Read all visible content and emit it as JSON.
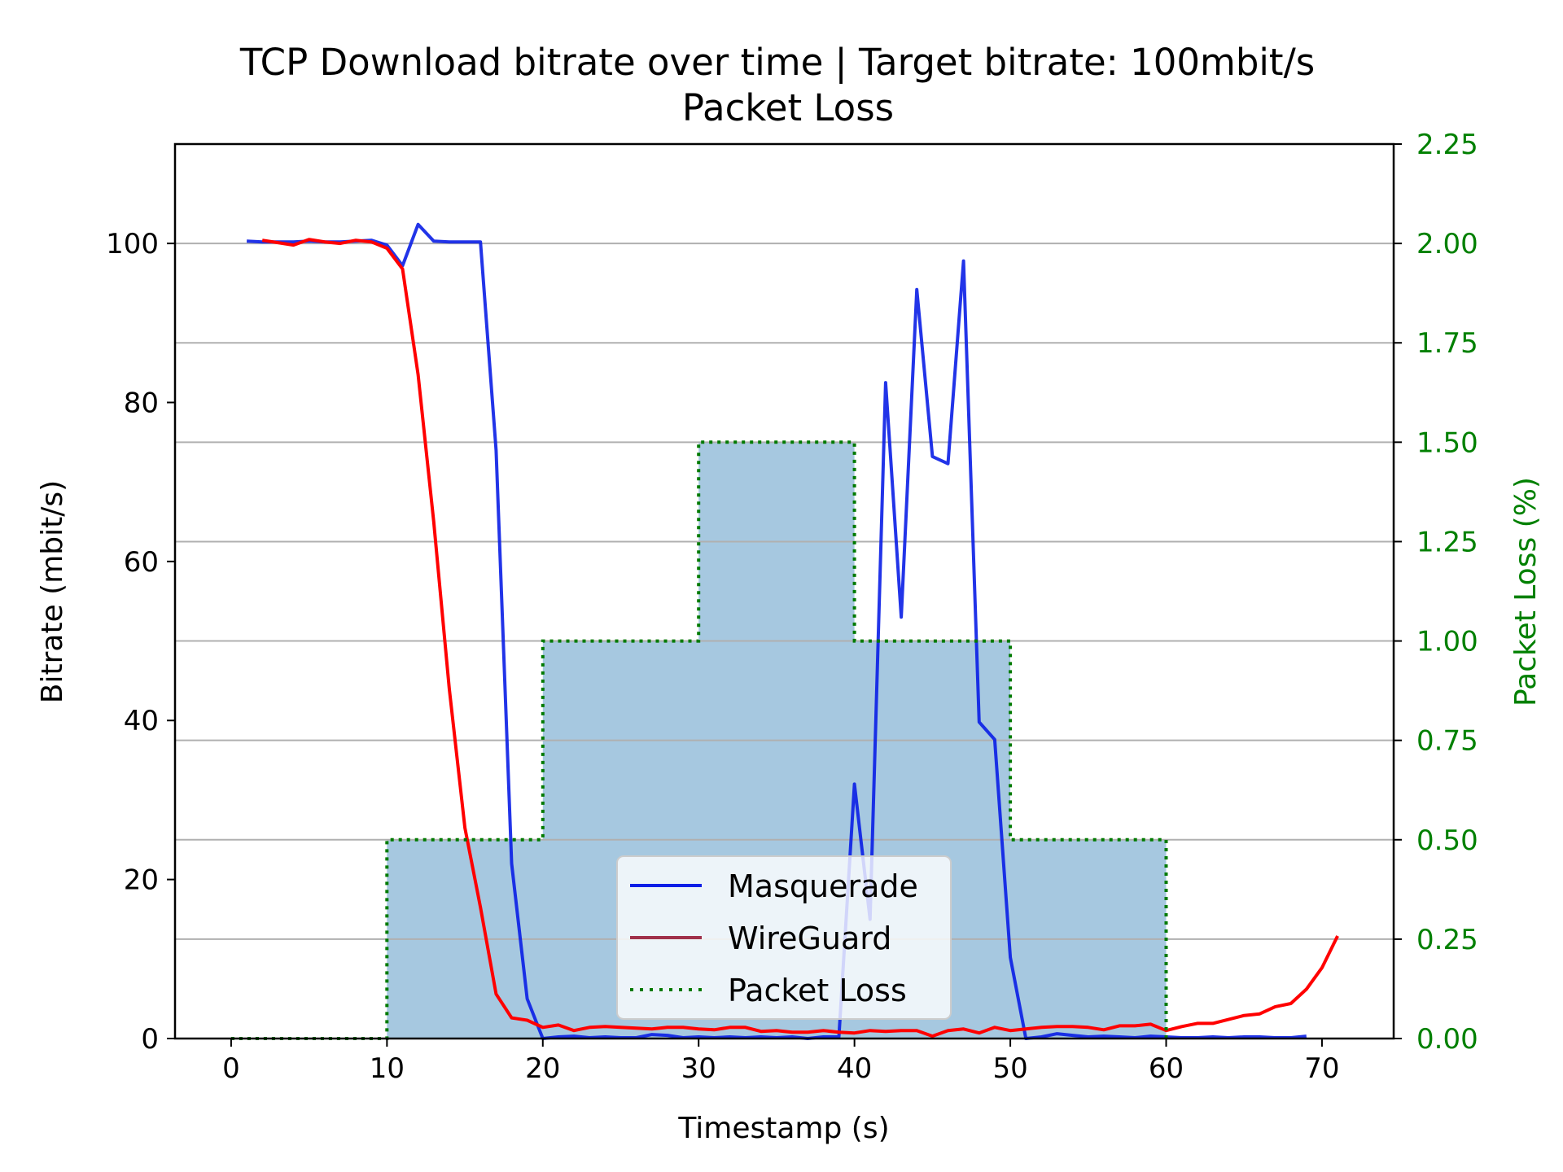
{
  "chart_data": {
    "type": "line",
    "title": "TCP Download bitrate over time | Target bitrate: 100mbit/s",
    "subtitle": "Packet Loss",
    "xlabel": "Timestamp (s)",
    "ylabel": "Bitrate (mbit/s)",
    "y2label": "Packet Loss (%)",
    "xlim": [
      -3.6,
      74.6
    ],
    "ylim": [
      0,
      112.5
    ],
    "y2lim": [
      0,
      2.25
    ],
    "xticks": [
      0,
      10,
      20,
      30,
      40,
      50,
      60,
      70
    ],
    "yticks": [
      0,
      20,
      40,
      60,
      80,
      100
    ],
    "y2ticks": [
      "0.00",
      "0.25",
      "0.50",
      "0.75",
      "1.00",
      "1.25",
      "1.50",
      "1.75",
      "2.00",
      "2.25"
    ],
    "grid": "horizontal (right axis)",
    "legend_position": "lower center",
    "series": [
      {
        "name": "Masquerade",
        "color": "#0a1ee6",
        "axis": "left",
        "x": [
          1,
          2,
          3,
          4,
          5,
          6,
          7,
          8,
          9,
          10,
          11,
          12,
          13,
          14,
          15,
          16,
          17,
          18,
          19,
          20,
          21,
          22,
          23,
          24,
          25,
          26,
          27,
          28,
          29,
          30,
          31,
          32,
          33,
          34,
          35,
          36,
          37,
          38,
          39,
          40,
          41,
          42,
          43,
          44,
          45,
          46,
          47,
          48,
          49,
          50,
          51,
          52,
          53,
          54,
          55,
          56,
          57,
          58,
          59,
          60,
          61,
          62,
          63,
          64,
          65,
          66,
          67,
          68,
          69
        ],
        "y": [
          100.3,
          100.2,
          100.2,
          100.2,
          100.3,
          100.2,
          100.2,
          100.3,
          100.4,
          99.8,
          97.2,
          102.4,
          100.3,
          100.2,
          100.2,
          100.2,
          74.0,
          22.0,
          5.0,
          0.0,
          0.2,
          0.3,
          0.1,
          0.2,
          0.1,
          0.1,
          0.5,
          0.4,
          0.1,
          0.2,
          0.1,
          0.2,
          0.1,
          0.2,
          0.1,
          0.2,
          0.0,
          0.2,
          0.2,
          32.0,
          15.0,
          82.5,
          53.0,
          94.2,
          73.2,
          72.3,
          97.8,
          39.8,
          37.6,
          10.2,
          0.0,
          0.2,
          0.6,
          0.4,
          0.2,
          0.3,
          0.2,
          0.1,
          0.3,
          0.2,
          0.1,
          0.1,
          0.2,
          0.1,
          0.2,
          0.2,
          0.1,
          0.1,
          0.3
        ]
      },
      {
        "name": "WireGuard",
        "color": "#ff0000",
        "axis": "left",
        "x": [
          2,
          3,
          4,
          5,
          6,
          7,
          8,
          9,
          10,
          11,
          12,
          13,
          14,
          15,
          16,
          17,
          18,
          19,
          20,
          21,
          22,
          23,
          24,
          25,
          26,
          27,
          28,
          29,
          30,
          31,
          32,
          33,
          34,
          35,
          36,
          37,
          38,
          39,
          40,
          41,
          42,
          43,
          44,
          45,
          46,
          47,
          48,
          49,
          50,
          51,
          52,
          53,
          54,
          55,
          56,
          57,
          58,
          59,
          60,
          61,
          62,
          63,
          64,
          65,
          66,
          67,
          68,
          69,
          70,
          71
        ],
        "y": [
          100.4,
          100.1,
          99.8,
          100.5,
          100.2,
          100.0,
          100.4,
          100.2,
          99.4,
          96.8,
          83.5,
          65.0,
          44.0,
          26.5,
          16.5,
          5.6,
          2.6,
          2.3,
          1.4,
          1.7,
          1.0,
          1.4,
          1.5,
          1.4,
          1.3,
          1.2,
          1.4,
          1.4,
          1.2,
          1.1,
          1.4,
          1.4,
          0.9,
          1.0,
          0.8,
          0.8,
          1.0,
          0.8,
          0.7,
          1.0,
          0.9,
          1.0,
          1.0,
          0.3,
          1.0,
          1.2,
          0.7,
          1.4,
          1.0,
          1.2,
          1.4,
          1.5,
          1.5,
          1.4,
          1.1,
          1.6,
          1.6,
          1.8,
          1.0,
          1.5,
          1.9,
          1.9,
          2.4,
          2.9,
          3.1,
          4.0,
          4.4,
          6.2,
          8.9,
          12.9
        ]
      },
      {
        "name": "Packet Loss",
        "color": "#007a00",
        "axis": "right",
        "style": "dotted",
        "fill_color": "#a6c8e0",
        "x": [
          0,
          10,
          20,
          30,
          40,
          50,
          60
        ],
        "y": [
          0.0,
          0.5,
          1.0,
          1.5,
          1.0,
          0.5,
          0.0
        ]
      }
    ]
  }
}
